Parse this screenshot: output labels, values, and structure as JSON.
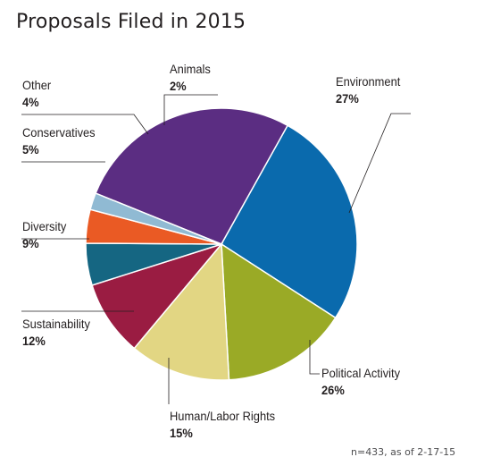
{
  "chart_data": {
    "type": "pie",
    "title": "Proposals Filed in 2015",
    "note": "n=433, as of 2-17-15",
    "slices": [
      {
        "label": "Environment",
        "value": 27,
        "value_label": "27%",
        "color": "#5b2d82"
      },
      {
        "label": "Political Activity",
        "value": 26,
        "value_label": "26%",
        "color": "#0a6aad"
      },
      {
        "label": "Human/Labor Rights",
        "value": 15,
        "value_label": "15%",
        "color": "#9aaa26"
      },
      {
        "label": "Sustainability",
        "value": 12,
        "value_label": "12%",
        "color": "#e2d683"
      },
      {
        "label": "Diversity",
        "value": 9,
        "value_label": "9%",
        "color": "#9a1c42"
      },
      {
        "label": "Conservatives",
        "value": 5,
        "value_label": "5%",
        "color": "#156682"
      },
      {
        "label": "Other",
        "value": 4,
        "value_label": "4%",
        "color": "#ea5a24"
      },
      {
        "label": "Animals",
        "value": 2,
        "value_label": "2%",
        "color": "#90bad3"
      }
    ]
  }
}
